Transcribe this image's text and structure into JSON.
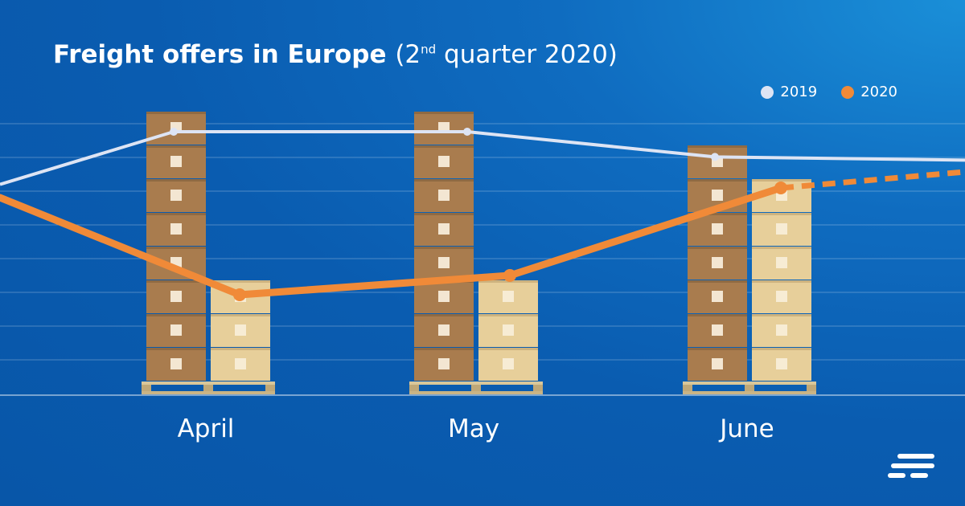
{
  "title": {
    "bold": "Freight offers in Europe",
    "paren_open": "(2",
    "sup": "nd",
    "rest": " quarter 2020)"
  },
  "legend": [
    {
      "label": "2019",
      "color": "#dde4f4"
    },
    {
      "label": "2020",
      "color": "#f08a38"
    }
  ],
  "chart_data": {
    "type": "line",
    "categories": [
      "April",
      "May",
      "June"
    ],
    "series": [
      {
        "name": "2019",
        "color": "#dde4f4",
        "values": [
          8,
          8,
          7.3
        ],
        "style": "solid"
      },
      {
        "name": "2020",
        "color": "#f08a38",
        "values": [
          3,
          3.5,
          6
        ],
        "style": "solid",
        "continuation": "dashed"
      }
    ],
    "ylim": [
      0,
      9
    ],
    "grid": true,
    "legend_position": "top-right",
    "bars": "stacked boxes per month (2019 brown, 2020 beige)"
  },
  "logo_icon": "speed-lines-logo-icon"
}
